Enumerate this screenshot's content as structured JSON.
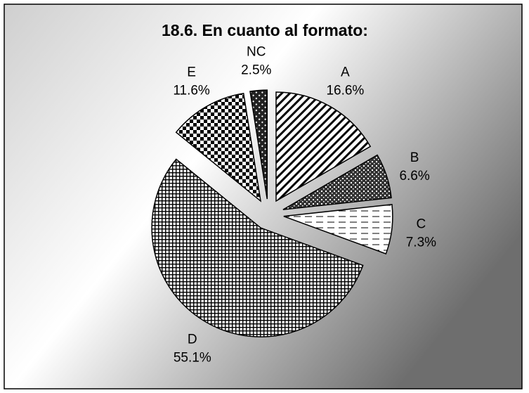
{
  "chart_data": {
    "type": "pie",
    "title": "18.6. En cuanto al formato:",
    "categories": [
      "A",
      "B",
      "C",
      "D",
      "E",
      "NC"
    ],
    "values": [
      16.6,
      6.6,
      7.3,
      55.1,
      11.6,
      2.5
    ],
    "value_labels": [
      "16.6%",
      "6.6%",
      "7.3%",
      "55.1%",
      "11.6%",
      "2.5%"
    ],
    "exploded": true
  }
}
